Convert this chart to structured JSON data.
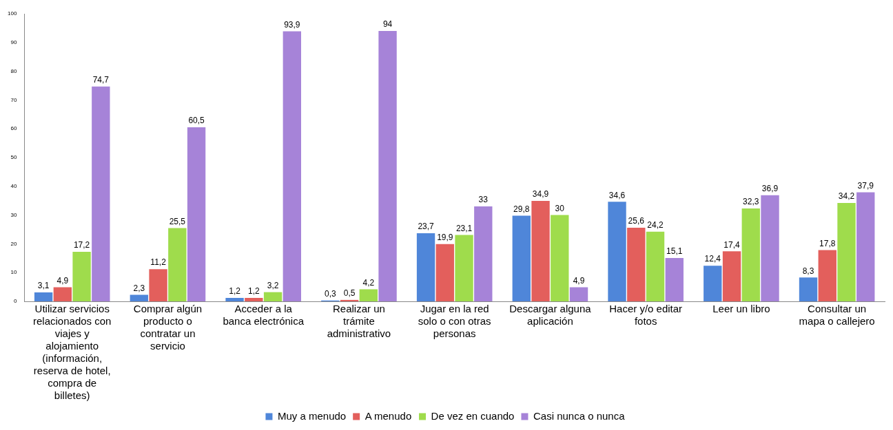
{
  "chart_data": {
    "type": "bar",
    "categories": [
      "Utilizar servicios relacionados con viajes y alojamiento (información, reserva de hotel, compra de billetes)",
      "Comprar algún producto o contratar un servicio",
      "Acceder a la banca electrónica",
      "Realizar un trámite administrativo",
      "Jugar en la red solo o con otras personas",
      "Descargar alguna aplicación",
      "Hacer y/o editar fotos",
      "Leer un libro",
      "Consultar un mapa o callejero"
    ],
    "series": [
      {
        "name": "Muy a menudo",
        "color": "#4f86d9",
        "values": [
          3.1,
          2.3,
          1.2,
          0.3,
          23.7,
          29.8,
          34.6,
          12.4,
          8.3
        ],
        "value_labels": [
          "3,1",
          "2,3",
          "1,2",
          "0,3",
          "23,7",
          "29,8",
          "34,6",
          "12,4",
          "8,3"
        ]
      },
      {
        "name": "A menudo",
        "color": "#e35f5c",
        "values": [
          4.9,
          11.2,
          1.2,
          0.5,
          19.9,
          34.9,
          25.6,
          17.4,
          17.8
        ],
        "value_labels": [
          "4,9",
          "11,2",
          "1,2",
          "0,5",
          "19,9",
          "34,9",
          "25,6",
          "17,4",
          "17,8"
        ]
      },
      {
        "name": "De vez en cuando",
        "color": "#9fdc4c",
        "values": [
          17.2,
          25.5,
          3.2,
          4.2,
          23.1,
          30,
          24.2,
          32.3,
          34.2
        ],
        "value_labels": [
          "17,2",
          "25,5",
          "3,2",
          "4,2",
          "23,1",
          "30",
          "24,2",
          "32,3",
          "34,2"
        ]
      },
      {
        "name": "Casi nunca o nunca",
        "color": "#a683d8",
        "values": [
          74.7,
          60.5,
          93.9,
          94,
          33,
          4.9,
          15.1,
          36.9,
          37.9
        ],
        "value_labels": [
          "74,7",
          "60,5",
          "93,9",
          "94",
          "33",
          "4,9",
          "15,1",
          "36,9",
          "37,9"
        ]
      }
    ],
    "ylim": [
      0,
      100
    ],
    "yticks": [
      0,
      10,
      20,
      30,
      40,
      50,
      60,
      70,
      80,
      90,
      100
    ],
    "grid": false,
    "legend": "bottom"
  }
}
